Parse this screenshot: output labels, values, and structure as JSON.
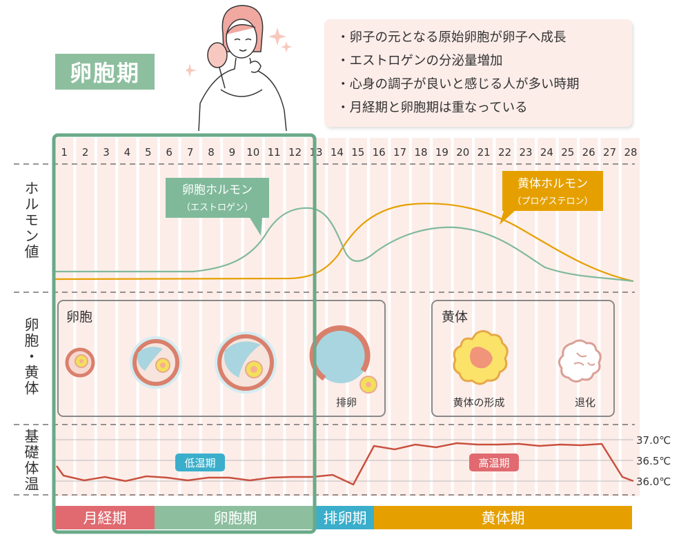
{
  "phase_title": "卵胞期",
  "info_points": [
    "・卵子の元となる原始卵胞が卵子へ成長",
    "・エストロゲンの分泌量増加",
    "・心身の調子が良いと感じる人が多い時期",
    "・月経期と卵胞期は重なっている"
  ],
  "days": [
    "1",
    "2",
    "3",
    "4",
    "5",
    "6",
    "7",
    "8",
    "9",
    "10",
    "11",
    "12",
    "13",
    "14",
    "15",
    "16",
    "17",
    "18",
    "19",
    "20",
    "21",
    "22",
    "23",
    "24",
    "25",
    "26",
    "27",
    "28"
  ],
  "row_labels": {
    "hormone": "ホルモン値",
    "follicle": "卵胞・黄体",
    "temperature": "基礎体温"
  },
  "hormones": {
    "follicular": {
      "name": "卵胞ホルモン",
      "sub": "（エストロゲン）",
      "color": "#7fb99a"
    },
    "luteal": {
      "name": "黄体ホルモン",
      "sub": "（プロゲステロン）",
      "color": "#e5a000"
    }
  },
  "follicle_panel": {
    "title": "卵胞",
    "ovulation_label": "排卵"
  },
  "corpus_panel": {
    "title": "黄体",
    "formation_label": "黄体の形成",
    "regression_label": "退化"
  },
  "temperature": {
    "low_label": "低温期",
    "high_label": "高温期",
    "ticks": [
      "37.0℃",
      "36.5℃",
      "36.0℃"
    ]
  },
  "phases": [
    {
      "name": "月経期",
      "color": "#e06a70"
    },
    {
      "name": "卵胞期",
      "color": "#8dbf9f"
    },
    {
      "name": "排卵期",
      "color": "#3aaecb"
    },
    {
      "name": "黄体期",
      "color": "#e5a000"
    }
  ],
  "colors": {
    "stripe": "#fcede9",
    "highlight": "#6aa989",
    "temp_line": "#c8503e",
    "follicle_ring": "#d9806c",
    "egg": "#f3e05a"
  }
}
